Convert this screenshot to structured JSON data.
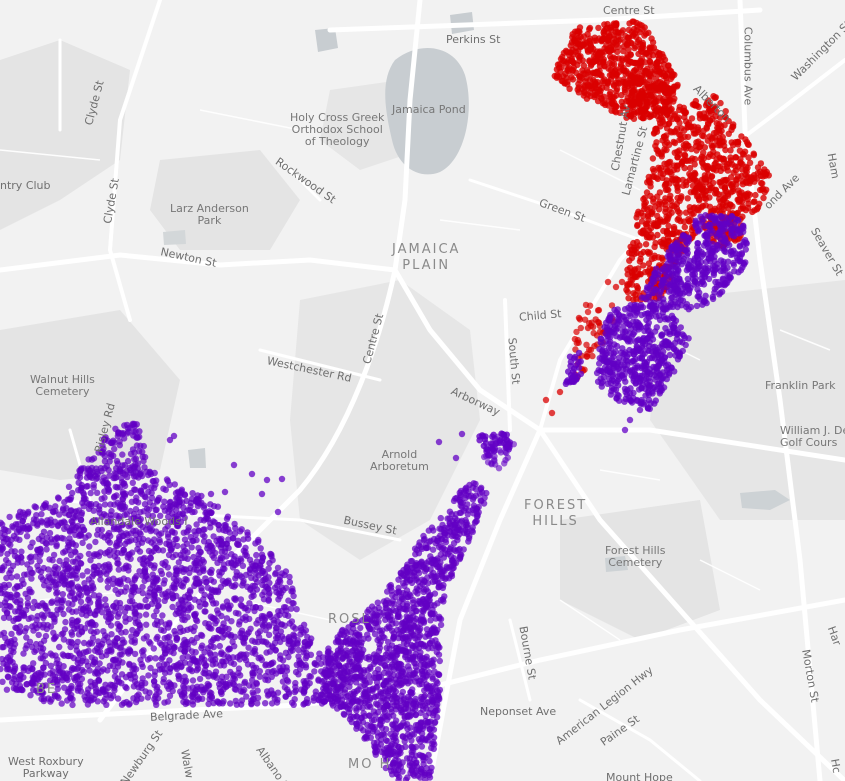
{
  "map": {
    "colors": {
      "land": "#f2f2f2",
      "park": "#e3e3e3",
      "water": "#c9cfd3",
      "road": "#ffffff",
      "red": "#d90000",
      "purple": "#6200c4"
    },
    "labels": {
      "perkins_st": "Perkins St",
      "centre_st_top": "Centre St",
      "columbus_ave": "Columbus Ave",
      "washington_st": "Washington St",
      "clyde_st_1": "Clyde St",
      "clyde_st_2": "Clyde St",
      "country_club": "ntry Club",
      "jamaica_pond": "Jamaica Pond",
      "holy_cross": "Holy Cross Greek\nOrthodox School\nof Theology",
      "rockwood_st": "Rockwood St",
      "larz_anderson": "Larz Anderson\nPark",
      "newton_st": "Newton St",
      "jamaica_plain": "JAMAICA\nPLAIN",
      "green_st": "Green St",
      "chestnut_av": "Chestnut Av",
      "lamartine_st": "Lamartine St",
      "alberton": "Alberton",
      "ond_ave": "ond Ave",
      "seaver_st": "Seaver St",
      "child_st": "Child St",
      "south_st": "South St",
      "centre_st_mid": "Centre St",
      "westchester_rd": "Westchester Rd",
      "walnut_hills": "Walnut Hills\nCemetery",
      "risley_rd": "Risley Rd",
      "arborway": "Arborway",
      "franklin_park": "Franklin Park",
      "william_j": "William J. De\nGolf Cours",
      "arnold_arboretum": "Arnold\nArboretum",
      "forest_hills": "FOREST\nHILLS",
      "allandale_woods": "Allandale Woods I",
      "bussey_st": "Bussey St",
      "forest_hills_cemetery": "Forest Hills\nCemetery",
      "rosl": "ROSL",
      "bourne_st": "Bourne St",
      "morton_st": "Morton St",
      "neponset_ave": "Neponset Ave",
      "american_legion": "American Legion Hwy",
      "paine_st": "Paine St",
      "belgrade_ave": "Belgrade Ave",
      "west_roxbury": "West Roxbury\nParkway",
      "newburg_st": "Newburg St",
      "walw": "Walw",
      "albano_s": "Albano S",
      "mount_hope": "Mount Hope",
      "mo_ho": "MO    H",
      "be": "BE",
      "har": "Har",
      "ham": "Ham",
      "hc": "Hc"
    }
  }
}
